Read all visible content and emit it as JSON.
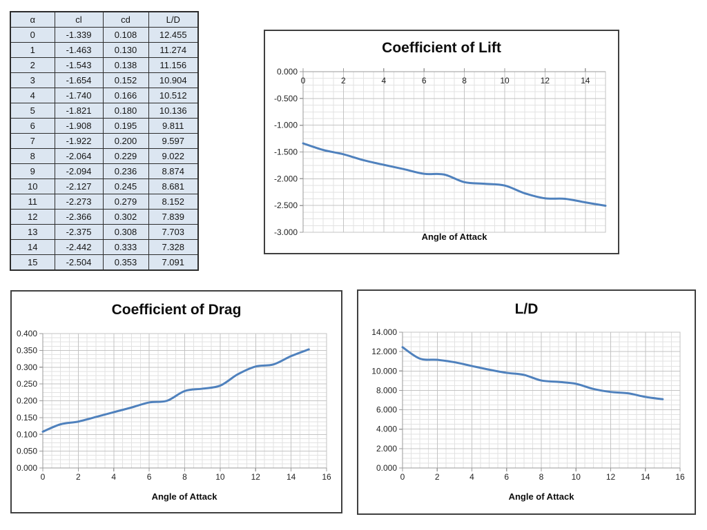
{
  "table": {
    "headers": [
      "α",
      "cl",
      "cd",
      "L/D"
    ],
    "rows": [
      [
        "0",
        "-1.339",
        "0.108",
        "12.455"
      ],
      [
        "1",
        "-1.463",
        "0.130",
        "11.274"
      ],
      [
        "2",
        "-1.543",
        "0.138",
        "11.156"
      ],
      [
        "3",
        "-1.654",
        "0.152",
        "10.904"
      ],
      [
        "4",
        "-1.740",
        "0.166",
        "10.512"
      ],
      [
        "5",
        "-1.821",
        "0.180",
        "10.136"
      ],
      [
        "6",
        "-1.908",
        "0.195",
        "9.811"
      ],
      [
        "7",
        "-1.922",
        "0.200",
        "9.597"
      ],
      [
        "8",
        "-2.064",
        "0.229",
        "9.022"
      ],
      [
        "9",
        "-2.094",
        "0.236",
        "8.874"
      ],
      [
        "10",
        "-2.127",
        "0.245",
        "8.681"
      ],
      [
        "11",
        "-2.273",
        "0.279",
        "8.152"
      ],
      [
        "12",
        "-2.366",
        "0.302",
        "7.839"
      ],
      [
        "13",
        "-2.375",
        "0.308",
        "7.703"
      ],
      [
        "14",
        "-2.442",
        "0.333",
        "7.328"
      ],
      [
        "15",
        "-2.504",
        "0.353",
        "7.091"
      ]
    ]
  },
  "chart_data": [
    {
      "type": "line",
      "title": "Coefficient of Lift",
      "xlabel": "Angle of Attack",
      "ylabel": "",
      "x": [
        0,
        1,
        2,
        3,
        4,
        5,
        6,
        7,
        8,
        9,
        10,
        11,
        12,
        13,
        14,
        15
      ],
      "values": [
        -1.339,
        -1.463,
        -1.543,
        -1.654,
        -1.74,
        -1.821,
        -1.908,
        -1.922,
        -2.064,
        -2.094,
        -2.127,
        -2.273,
        -2.366,
        -2.375,
        -2.442,
        -2.504
      ],
      "xlim": [
        0,
        15
      ],
      "ylim": [
        -3.0,
        0.0
      ],
      "x_major": 2,
      "x_minor": 0.5,
      "y_major": 0.5,
      "y_minor": 0.125,
      "x_ticks": [
        0,
        2,
        4,
        6,
        8,
        10,
        12,
        14
      ],
      "y_ticks": [
        "0.000",
        "-0.500",
        "-1.000",
        "-1.500",
        "-2.000",
        "-2.500",
        "-3.000"
      ],
      "x_axis_position": "top",
      "grid": "major+minor",
      "legend": "none",
      "smoothed_line": true
    },
    {
      "type": "line",
      "title": "Coefficient of Drag",
      "xlabel": "Angle of Attack",
      "ylabel": "",
      "x": [
        0,
        1,
        2,
        3,
        4,
        5,
        6,
        7,
        8,
        9,
        10,
        11,
        12,
        13,
        14,
        15
      ],
      "values": [
        0.108,
        0.13,
        0.138,
        0.152,
        0.166,
        0.18,
        0.195,
        0.2,
        0.229,
        0.236,
        0.245,
        0.279,
        0.302,
        0.308,
        0.333,
        0.353
      ],
      "xlim": [
        0,
        16
      ],
      "ylim": [
        0.0,
        0.4
      ],
      "x_major": 2,
      "x_minor": 0.5,
      "y_major": 0.05,
      "y_minor": 0.0125,
      "x_ticks": [
        0,
        2,
        4,
        6,
        8,
        10,
        12,
        14,
        16
      ],
      "y_ticks": [
        "0.400",
        "0.350",
        "0.300",
        "0.250",
        "0.200",
        "0.150",
        "0.100",
        "0.050",
        "0.000"
      ],
      "x_axis_position": "bottom",
      "grid": "major+minor",
      "legend": "none",
      "smoothed_line": true
    },
    {
      "type": "line",
      "title": "L/D",
      "xlabel": "Angle of Attack",
      "ylabel": "",
      "x": [
        0,
        1,
        2,
        3,
        4,
        5,
        6,
        7,
        8,
        9,
        10,
        11,
        12,
        13,
        14,
        15
      ],
      "values": [
        12.455,
        11.274,
        11.156,
        10.904,
        10.512,
        10.136,
        9.811,
        9.597,
        9.022,
        8.874,
        8.681,
        8.152,
        7.839,
        7.703,
        7.328,
        7.091
      ],
      "xlim": [
        0,
        16
      ],
      "ylim": [
        0.0,
        14.0
      ],
      "x_major": 2,
      "x_minor": 0.5,
      "y_major": 2.0,
      "y_minor": 0.5,
      "x_ticks": [
        0,
        2,
        4,
        6,
        8,
        10,
        12,
        14,
        16
      ],
      "y_ticks": [
        "14.000",
        "12.000",
        "10.000",
        "8.000",
        "6.000",
        "4.000",
        "2.000",
        "0.000"
      ],
      "x_axis_position": "bottom",
      "grid": "major+minor",
      "legend": "none",
      "smoothed_line": true
    }
  ],
  "colors": {
    "series_line": "#4f81bd",
    "grid_major": "#c3c3c3",
    "grid_minor": "#e2e2e2",
    "axis_line": "#9a9a9a",
    "tick_label": "#1f1f1f",
    "table_cell_bg": "#dce6f1",
    "table_border": "#2b2b2b"
  }
}
